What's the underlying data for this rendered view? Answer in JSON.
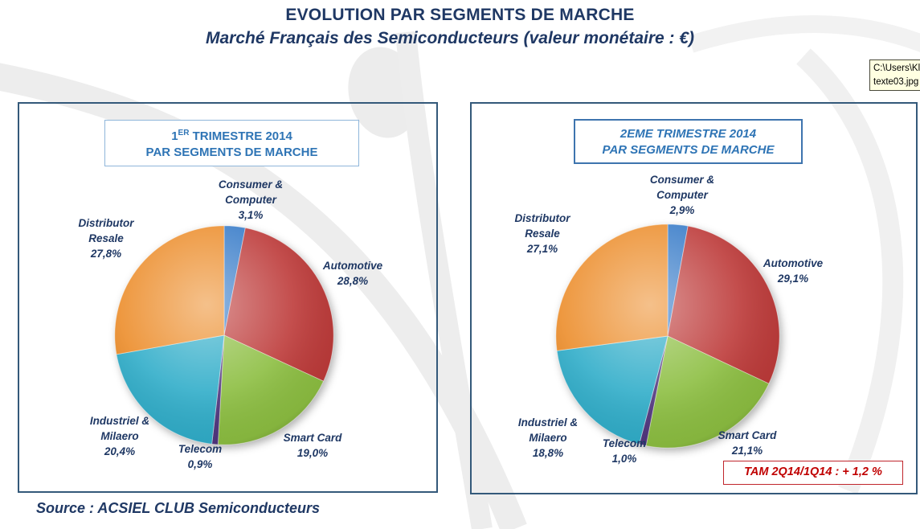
{
  "header": {
    "title": "EVOLUTION PAR SEGMENTS DE MARCHE",
    "subtitle": "Marché Français des Semiconducteurs (valeur monétaire : €)"
  },
  "tooltip": {
    "line1": "C:\\Users\\Kl",
    "line2": "texte03.jpg"
  },
  "panels": [
    {
      "title_num": "1",
      "title_sup": "ER",
      "title_rest": " TRIMESTRE 2014",
      "title_line2": "PAR SEGMENTS DE MARCHE"
    },
    {
      "title_line1": "2EME TRIMESTRE 2014",
      "title_line2": "PAR SEGMENTS DE MARCHE"
    }
  ],
  "tam_annotation": "TAM 2Q14/1Q14 :  + 1,2 %",
  "source": "Source : ACSIEL CLUB Semiconducteurs",
  "colors": {
    "title_navy": "#1F3864",
    "header_blue": "#2E74B5",
    "panel_border": "#34597A",
    "tam_red": "#C00000",
    "tooltip_bg": "#FFFFE1"
  },
  "chart_data": [
    {
      "type": "pie",
      "title": "1ER TRIMESTRE 2014 PAR SEGMENTS DE MARCHE",
      "start_angle_deg": 0,
      "direction": "clockwise",
      "segments": [
        {
          "label": "Consumer & Computer",
          "value": 3.1,
          "value_label": "3,1%",
          "color": "#377BC8"
        },
        {
          "label": "Automotive",
          "value": 28.8,
          "value_label": "28,8%",
          "color": "#BD3A39"
        },
        {
          "label": "Smart Card",
          "value": 19.0,
          "value_label": "19,0%",
          "color": "#8CBE41"
        },
        {
          "label": "Telecom",
          "value": 0.9,
          "value_label": "0,9%",
          "color": "#50357E"
        },
        {
          "label": "Industriel & Milaero",
          "value": 20.4,
          "value_label": "20,4%",
          "color": "#30ADC9"
        },
        {
          "label": "Distributor Resale",
          "value": 27.8,
          "value_label": "27,8%",
          "color": "#EC8D2B"
        }
      ]
    },
    {
      "type": "pie",
      "title": "2EME TRIMESTRE 2014 PAR SEGMENTS DE MARCHE",
      "start_angle_deg": 0,
      "direction": "clockwise",
      "annotation": "TAM 2Q14/1Q14 :  + 1,2 %",
      "segments": [
        {
          "label": "Consumer & Computer",
          "value": 2.9,
          "value_label": "2,9%",
          "color": "#377BC8"
        },
        {
          "label": "Automotive",
          "value": 29.1,
          "value_label": "29,1%",
          "color": "#BD3A39"
        },
        {
          "label": "Smart Card",
          "value": 21.1,
          "value_label": "21,1%",
          "color": "#8CBE41"
        },
        {
          "label": "Telecom",
          "value": 1.0,
          "value_label": "1,0%",
          "color": "#50357E"
        },
        {
          "label": "Industriel & Milaero",
          "value": 18.8,
          "value_label": "18,8%",
          "color": "#30ADC9"
        },
        {
          "label": "Distributor Resale",
          "value": 27.1,
          "value_label": "27,1%",
          "color": "#EC8D2B"
        }
      ]
    }
  ]
}
